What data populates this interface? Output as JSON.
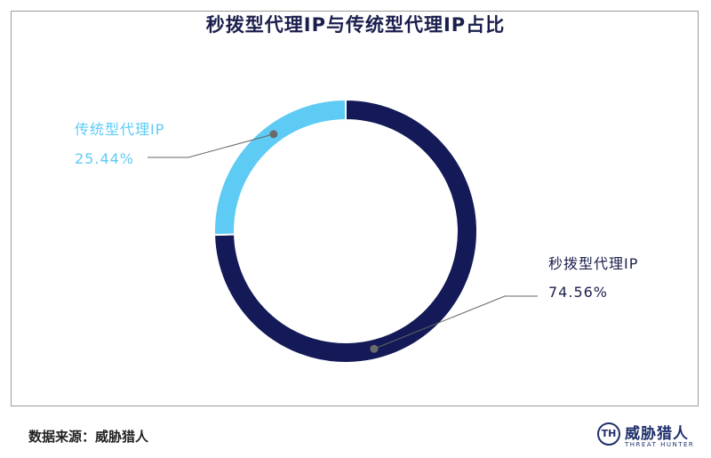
{
  "chart_data": {
    "type": "pie",
    "variant": "donut",
    "title": "秒拨型代理IP与传统型代理IP占比",
    "slices": [
      {
        "label": "秒拨型代理IP",
        "value": 74.56,
        "value_label": "74.56%",
        "color": "#131a57"
      },
      {
        "label": "传统型代理IP",
        "value": 25.44,
        "value_label": "25.44%",
        "color": "#5ecbf5"
      }
    ]
  },
  "footer": {
    "source": "数据来源：威胁猎人"
  },
  "logo": {
    "mark_text": "TH",
    "name_cn": "威胁猎人",
    "name_en": "THREAT HUNTER"
  }
}
